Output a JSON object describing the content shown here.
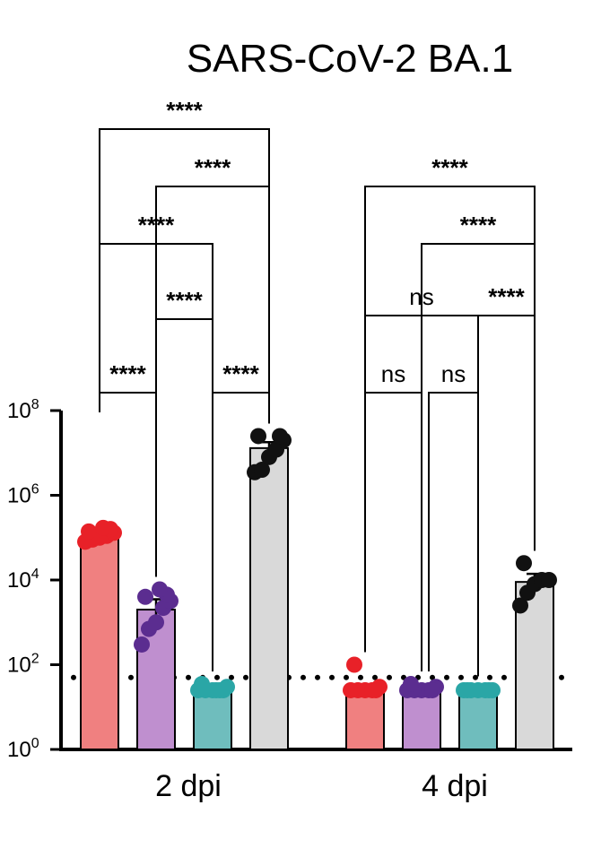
{
  "chart_data": {
    "type": "bar",
    "title": "SARS-CoV-2 BA.1",
    "xlabel": "",
    "ylabel": "",
    "y_scale": "log10",
    "ylim": [
      1,
      100000000
    ],
    "y_ticks": [
      {
        "base": "10",
        "exp": "0",
        "value": 1
      },
      {
        "base": "10",
        "exp": "2",
        "value": 100
      },
      {
        "base": "10",
        "exp": "4",
        "value": 10000
      },
      {
        "base": "10",
        "exp": "6",
        "value": 1000000
      },
      {
        "base": "10",
        "exp": "8",
        "value": 100000000
      }
    ],
    "limit_of_detection": 50,
    "group_colors": [
      "#f08080",
      "#bf8fcf",
      "#6fbdbd",
      "#d9d9d9"
    ],
    "point_colors": [
      "#e82128",
      "#5b2d90",
      "#2aa6a6",
      "#111111"
    ],
    "groups": [
      {
        "label": "2 dpi",
        "bars": [
          {
            "mean": 100000,
            "sem": [
              85000,
              120000
            ],
            "points": [
              80000,
              90000,
              100000,
              110000,
              130000,
              140000,
              160000,
              170000
            ]
          },
          {
            "mean": 2000,
            "sem": [
              1100,
              3500
            ],
            "points": [
              300,
              700,
              1000,
              2200,
              3200,
              4000,
              4500,
              6000
            ]
          },
          {
            "mean": 25,
            "sem": [
              20,
              30
            ],
            "points": [
              25,
              25,
              25,
              25,
              30,
              35,
              25,
              25
            ]
          },
          {
            "mean": 13000000,
            "sem": [
              9000000,
              18000000
            ],
            "points": [
              3500000,
              4000000,
              8000000,
              12000000,
              20000000,
              25000000,
              25000000
            ]
          }
        ],
        "comparisons": [
          {
            "from": 0,
            "to": 3,
            "label": "****"
          },
          {
            "from": 1,
            "to": 3,
            "label": "****"
          },
          {
            "from": 0,
            "to": 2,
            "label": "****"
          },
          {
            "from": 1,
            "to": 2,
            "label": "****"
          },
          {
            "from": 0,
            "to": 1,
            "label": "****"
          },
          {
            "from": 2,
            "to": 3,
            "label": "****"
          }
        ]
      },
      {
        "label": "4 dpi",
        "bars": [
          {
            "mean": 25,
            "sem": [
              22,
              32
            ],
            "points": [
              25,
              25,
              25,
              25,
              30,
              100,
              25
            ]
          },
          {
            "mean": 25,
            "sem": [
              22,
              30
            ],
            "points": [
              25,
              25,
              25,
              25,
              30,
              35,
              25
            ]
          },
          {
            "mean": 25,
            "sem": [
              23,
              27
            ],
            "points": [
              25,
              25,
              25,
              25,
              25,
              25,
              25
            ]
          },
          {
            "mean": 9000,
            "sem": [
              6000,
              14000
            ],
            "points": [
              2500,
              5000,
              8000,
              10000,
              10000,
              25000
            ]
          }
        ],
        "comparisons": [
          {
            "from": 0,
            "to": 3,
            "label": "****"
          },
          {
            "from": 1,
            "to": 3,
            "label": "****"
          },
          {
            "from": 0,
            "to": 2,
            "label": "ns"
          },
          {
            "from": 2,
            "to": 3,
            "label": "****"
          },
          {
            "from": 0,
            "to": 1,
            "label": "ns"
          },
          {
            "from": 1,
            "to": 2,
            "label": "ns"
          }
        ]
      }
    ]
  }
}
